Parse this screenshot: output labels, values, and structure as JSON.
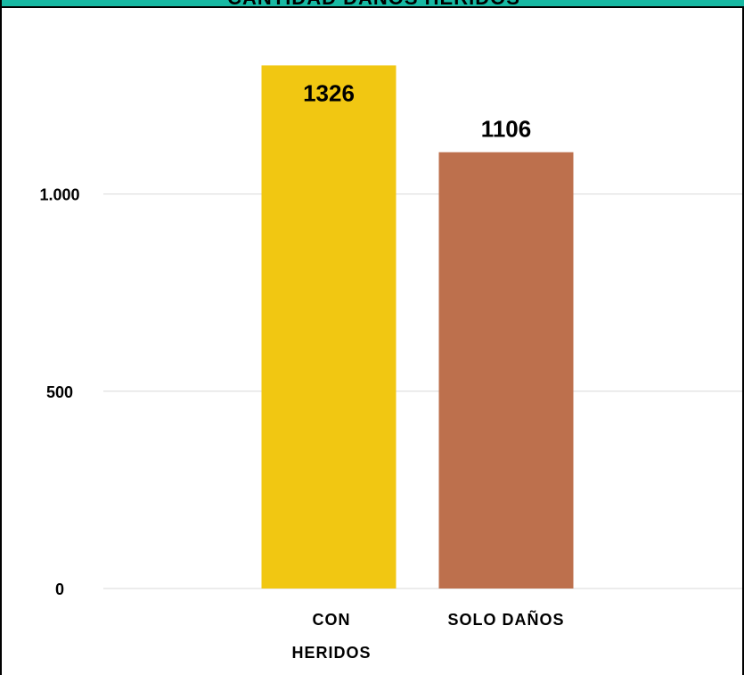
{
  "chart_data": {
    "type": "bar",
    "title": "CANTIDAD DAÑOS HERIDOS",
    "categories": [
      [
        "CON",
        "HERIDOS"
      ],
      [
        "SOLO  DAÑOS"
      ]
    ],
    "values": [
      1326,
      1106
    ],
    "data_labels": [
      "1326",
      "1106"
    ],
    "ylim": [
      0,
      1200
    ],
    "yticks": [
      {
        "value": 0,
        "label": "0"
      },
      {
        "value": 500,
        "label": "500"
      },
      {
        "value": 1000,
        "label": "1.000"
      }
    ],
    "grid": true,
    "colors": {
      "bars": [
        "#f1c712",
        "#bd704d"
      ],
      "title_band": "#18b9a3",
      "gridline": "#d9d9d9"
    }
  }
}
